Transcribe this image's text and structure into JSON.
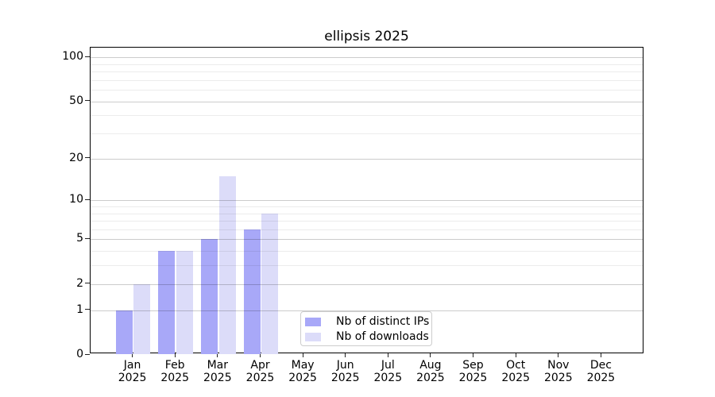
{
  "chart_data": {
    "type": "bar",
    "title": "ellipsis 2025",
    "categories": [
      "Jan",
      "Feb",
      "Mar",
      "Apr",
      "May",
      "Jun",
      "Jul",
      "Aug",
      "Sep",
      "Oct",
      "Nov",
      "Dec"
    ],
    "category_year_line": "2025",
    "series": [
      {
        "name": "Nb of distinct IPs",
        "color": "#a8a8f8",
        "values": [
          1,
          4,
          5,
          6,
          0,
          0,
          0,
          0,
          0,
          0,
          0,
          0
        ]
      },
      {
        "name": "Nb of downloads",
        "color": "#dcdcf9",
        "values": [
          2,
          4,
          15,
          8,
          0,
          0,
          0,
          0,
          0,
          0,
          0,
          0
        ]
      }
    ],
    "y_axis": {
      "ticks": [
        0,
        1,
        2,
        5,
        10,
        20,
        50,
        100
      ],
      "scale": "log10(1+x)",
      "ylim": [
        0,
        116
      ]
    },
    "grid": {
      "on": true,
      "major_color": "rgba(0,0,0,0.20)",
      "minor_color": "rgba(0,0,0,0.075)",
      "minor_values": [
        3,
        4,
        6,
        7,
        8,
        9,
        30,
        40,
        60,
        70,
        80,
        90
      ]
    },
    "legend": {
      "position": "inside-bottom-center"
    }
  }
}
